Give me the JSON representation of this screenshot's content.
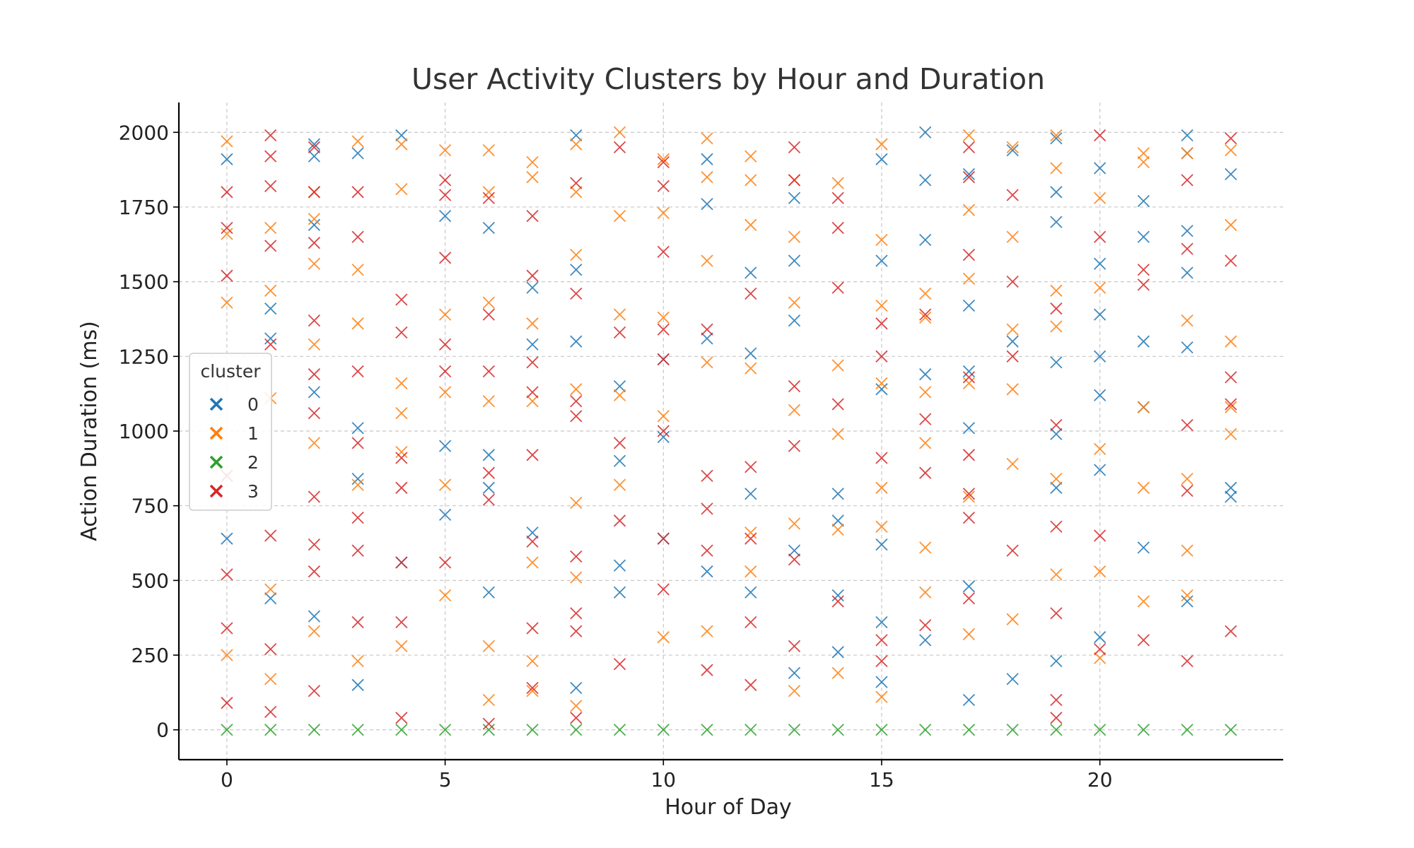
{
  "chart_data": {
    "type": "scatter",
    "title": "User Activity Clusters by Hour and Duration",
    "xlabel": "Hour of Day",
    "ylabel": "Action Duration (ms)",
    "xlim": [
      -1.1,
      24.2
    ],
    "ylim": [
      -100,
      2100
    ],
    "xticks": [
      0,
      5,
      10,
      15,
      20
    ],
    "yticks": [
      0,
      250,
      500,
      750,
      1000,
      1250,
      1500,
      1750,
      2000
    ],
    "grid": true,
    "legend": {
      "title": "cluster",
      "placement": "center-left",
      "entries": [
        "0",
        "1",
        "2",
        "3"
      ]
    },
    "marker": "x",
    "series": [
      {
        "name": "0",
        "color": "#1f77b4",
        "x": [
          0,
          0,
          1,
          1,
          1,
          2,
          2,
          2,
          2,
          2,
          3,
          3,
          3,
          3,
          4,
          4,
          5,
          5,
          5,
          6,
          6,
          6,
          6,
          7,
          7,
          7,
          8,
          8,
          8,
          8,
          9,
          9,
          9,
          9,
          10,
          10,
          10,
          11,
          11,
          11,
          11,
          12,
          12,
          12,
          12,
          13,
          13,
          13,
          13,
          13,
          14,
          14,
          14,
          14,
          15,
          15,
          15,
          15,
          15,
          15,
          16,
          16,
          16,
          16,
          16,
          17,
          17,
          17,
          17,
          17,
          17,
          18,
          18,
          18,
          19,
          19,
          19,
          19,
          19,
          19,
          19,
          20,
          20,
          20,
          20,
          20,
          20,
          20,
          21,
          21,
          21,
          21,
          21,
          22,
          22,
          22,
          22,
          22,
          22,
          23,
          23,
          23
        ],
        "y": [
          1910,
          640,
          1410,
          1310,
          440,
          1960,
          1920,
          1690,
          1130,
          380,
          1930,
          1010,
          840,
          150,
          1990,
          560,
          1720,
          950,
          720,
          1680,
          920,
          810,
          460,
          1480,
          1290,
          660,
          1990,
          1540,
          1300,
          140,
          1150,
          900,
          550,
          460,
          1240,
          980,
          640,
          1910,
          1760,
          1310,
          530,
          1530,
          1260,
          790,
          460,
          1780,
          1570,
          1370,
          600,
          190,
          790,
          700,
          450,
          260,
          1910,
          1570,
          1140,
          620,
          360,
          160,
          2000,
          1840,
          1640,
          1190,
          300,
          1860,
          1420,
          1200,
          1010,
          480,
          100,
          1940,
          1300,
          170,
          1980,
          1800,
          1700,
          1230,
          990,
          810,
          230,
          1880,
          1560,
          1390,
          1250,
          1120,
          870,
          310,
          1770,
          1650,
          1300,
          1080,
          610,
          1990,
          1930,
          1670,
          1530,
          1280,
          430,
          1860,
          810,
          780
        ],
        "glyph": "×"
      },
      {
        "name": "1",
        "color": "#ff7f0e",
        "x": [
          0,
          0,
          0,
          0,
          1,
          1,
          1,
          1,
          1,
          2,
          2,
          2,
          2,
          2,
          2,
          3,
          3,
          3,
          3,
          3,
          4,
          4,
          4,
          4,
          4,
          4,
          5,
          5,
          5,
          5,
          5,
          6,
          6,
          6,
          6,
          6,
          6,
          7,
          7,
          7,
          7,
          7,
          7,
          7,
          8,
          8,
          8,
          8,
          8,
          8,
          8,
          9,
          9,
          9,
          9,
          9,
          10,
          10,
          10,
          10,
          10,
          11,
          11,
          11,
          11,
          11,
          12,
          12,
          12,
          12,
          12,
          12,
          13,
          13,
          13,
          13,
          13,
          13,
          14,
          14,
          14,
          14,
          14,
          15,
          15,
          15,
          15,
          15,
          15,
          15,
          16,
          16,
          16,
          16,
          16,
          16,
          17,
          17,
          17,
          17,
          17,
          17,
          18,
          18,
          18,
          18,
          18,
          18,
          19,
          19,
          19,
          19,
          19,
          19,
          20,
          20,
          20,
          20,
          20,
          21,
          21,
          21,
          21,
          21,
          22,
          22,
          22,
          22,
          22,
          23,
          23,
          23,
          23,
          23
        ],
        "y": [
          1970,
          1660,
          1430,
          250,
          1680,
          1470,
          1110,
          470,
          170,
          1800,
          1710,
          1560,
          1290,
          960,
          330,
          1970,
          1540,
          1360,
          820,
          230,
          1960,
          1810,
          1160,
          1060,
          930,
          280,
          1940,
          1390,
          1130,
          820,
          450,
          1940,
          1800,
          1430,
          1100,
          280,
          100,
          1900,
          1850,
          1360,
          1100,
          560,
          230,
          130,
          1960,
          1800,
          1590,
          1140,
          760,
          510,
          80,
          2000,
          1720,
          1390,
          1120,
          820,
          1910,
          1730,
          1380,
          1050,
          310,
          1980,
          1850,
          1570,
          1230,
          330,
          1920,
          1840,
          1690,
          1210,
          660,
          530,
          1840,
          1650,
          1430,
          1070,
          690,
          130,
          1830,
          1220,
          990,
          670,
          190,
          1960,
          1640,
          1420,
          1160,
          810,
          680,
          110,
          1460,
          1380,
          1130,
          960,
          610,
          460,
          1990,
          1740,
          1510,
          1160,
          780,
          320,
          1950,
          1650,
          1340,
          1140,
          890,
          370,
          1990,
          1880,
          1470,
          1350,
          840,
          520,
          1780,
          1480,
          940,
          530,
          240,
          1930,
          1900,
          1080,
          810,
          430,
          1930,
          1370,
          840,
          600,
          450,
          1940,
          1690,
          1300,
          1080,
          990
        ],
        "glyph": "×"
      },
      {
        "name": "2",
        "color": "#2ca02c",
        "x": [
          0,
          1,
          2,
          3,
          4,
          5,
          6,
          7,
          8,
          9,
          10,
          11,
          12,
          13,
          14,
          15,
          16,
          17,
          18,
          19,
          20,
          21,
          22,
          23
        ],
        "y": [
          0,
          0,
          0,
          0,
          0,
          0,
          0,
          0,
          0,
          0,
          0,
          0,
          0,
          0,
          0,
          0,
          0,
          0,
          0,
          0,
          0,
          0,
          0,
          0
        ],
        "glyph": "×"
      },
      {
        "name": "3",
        "color": "#d62728",
        "x": [
          0,
          0,
          0,
          0,
          0,
          0,
          0,
          1,
          1,
          1,
          1,
          1,
          1,
          1,
          1,
          2,
          2,
          2,
          2,
          2,
          2,
          2,
          2,
          2,
          2,
          3,
          3,
          3,
          3,
          3,
          3,
          3,
          4,
          4,
          4,
          4,
          4,
          4,
          4,
          5,
          5,
          5,
          5,
          5,
          5,
          6,
          6,
          6,
          6,
          6,
          6,
          7,
          7,
          7,
          7,
          7,
          7,
          7,
          7,
          8,
          8,
          8,
          8,
          8,
          8,
          8,
          8,
          9,
          9,
          9,
          9,
          9,
          10,
          10,
          10,
          10,
          10,
          10,
          10,
          10,
          11,
          11,
          11,
          11,
          11,
          12,
          12,
          12,
          12,
          12,
          13,
          13,
          13,
          13,
          13,
          13,
          14,
          14,
          14,
          14,
          14,
          15,
          15,
          15,
          15,
          15,
          16,
          16,
          16,
          16,
          17,
          17,
          17,
          17,
          17,
          17,
          17,
          17,
          18,
          18,
          18,
          18,
          19,
          19,
          19,
          19,
          19,
          19,
          20,
          20,
          20,
          20,
          21,
          21,
          21,
          22,
          22,
          22,
          22,
          22,
          23,
          23,
          23,
          23,
          23
        ],
        "y": [
          1800,
          1680,
          1520,
          850,
          520,
          340,
          90,
          1990,
          1920,
          1820,
          1620,
          1290,
          650,
          270,
          60,
          1950,
          1800,
          1630,
          1370,
          1190,
          1060,
          780,
          620,
          530,
          130,
          1800,
          1650,
          1200,
          960,
          710,
          600,
          360,
          1440,
          1330,
          910,
          810,
          560,
          360,
          40,
          1840,
          1790,
          1580,
          1290,
          1200,
          560,
          1780,
          1390,
          1200,
          860,
          770,
          20,
          1720,
          1520,
          1230,
          1130,
          920,
          630,
          340,
          140,
          1830,
          1460,
          1100,
          1050,
          580,
          390,
          330,
          40,
          1950,
          1330,
          960,
          700,
          220,
          1900,
          1820,
          1600,
          1340,
          1240,
          1000,
          640,
          470,
          1340,
          850,
          740,
          600,
          200,
          1460,
          880,
          640,
          360,
          150,
          1950,
          1840,
          1150,
          950,
          570,
          280,
          1780,
          1680,
          1480,
          1090,
          430,
          1360,
          1250,
          910,
          300,
          230,
          1390,
          1040,
          860,
          350,
          1950,
          1850,
          1590,
          1180,
          920,
          790,
          710,
          440,
          1790,
          1250,
          1500,
          600,
          1410,
          1020,
          680,
          390,
          100,
          40,
          1990,
          1650,
          650,
          270,
          1540,
          1490,
          300,
          1840,
          1610,
          1020,
          800,
          230,
          1980,
          1570,
          1180,
          1090,
          330
        ],
        "glyph": "×"
      }
    ]
  }
}
